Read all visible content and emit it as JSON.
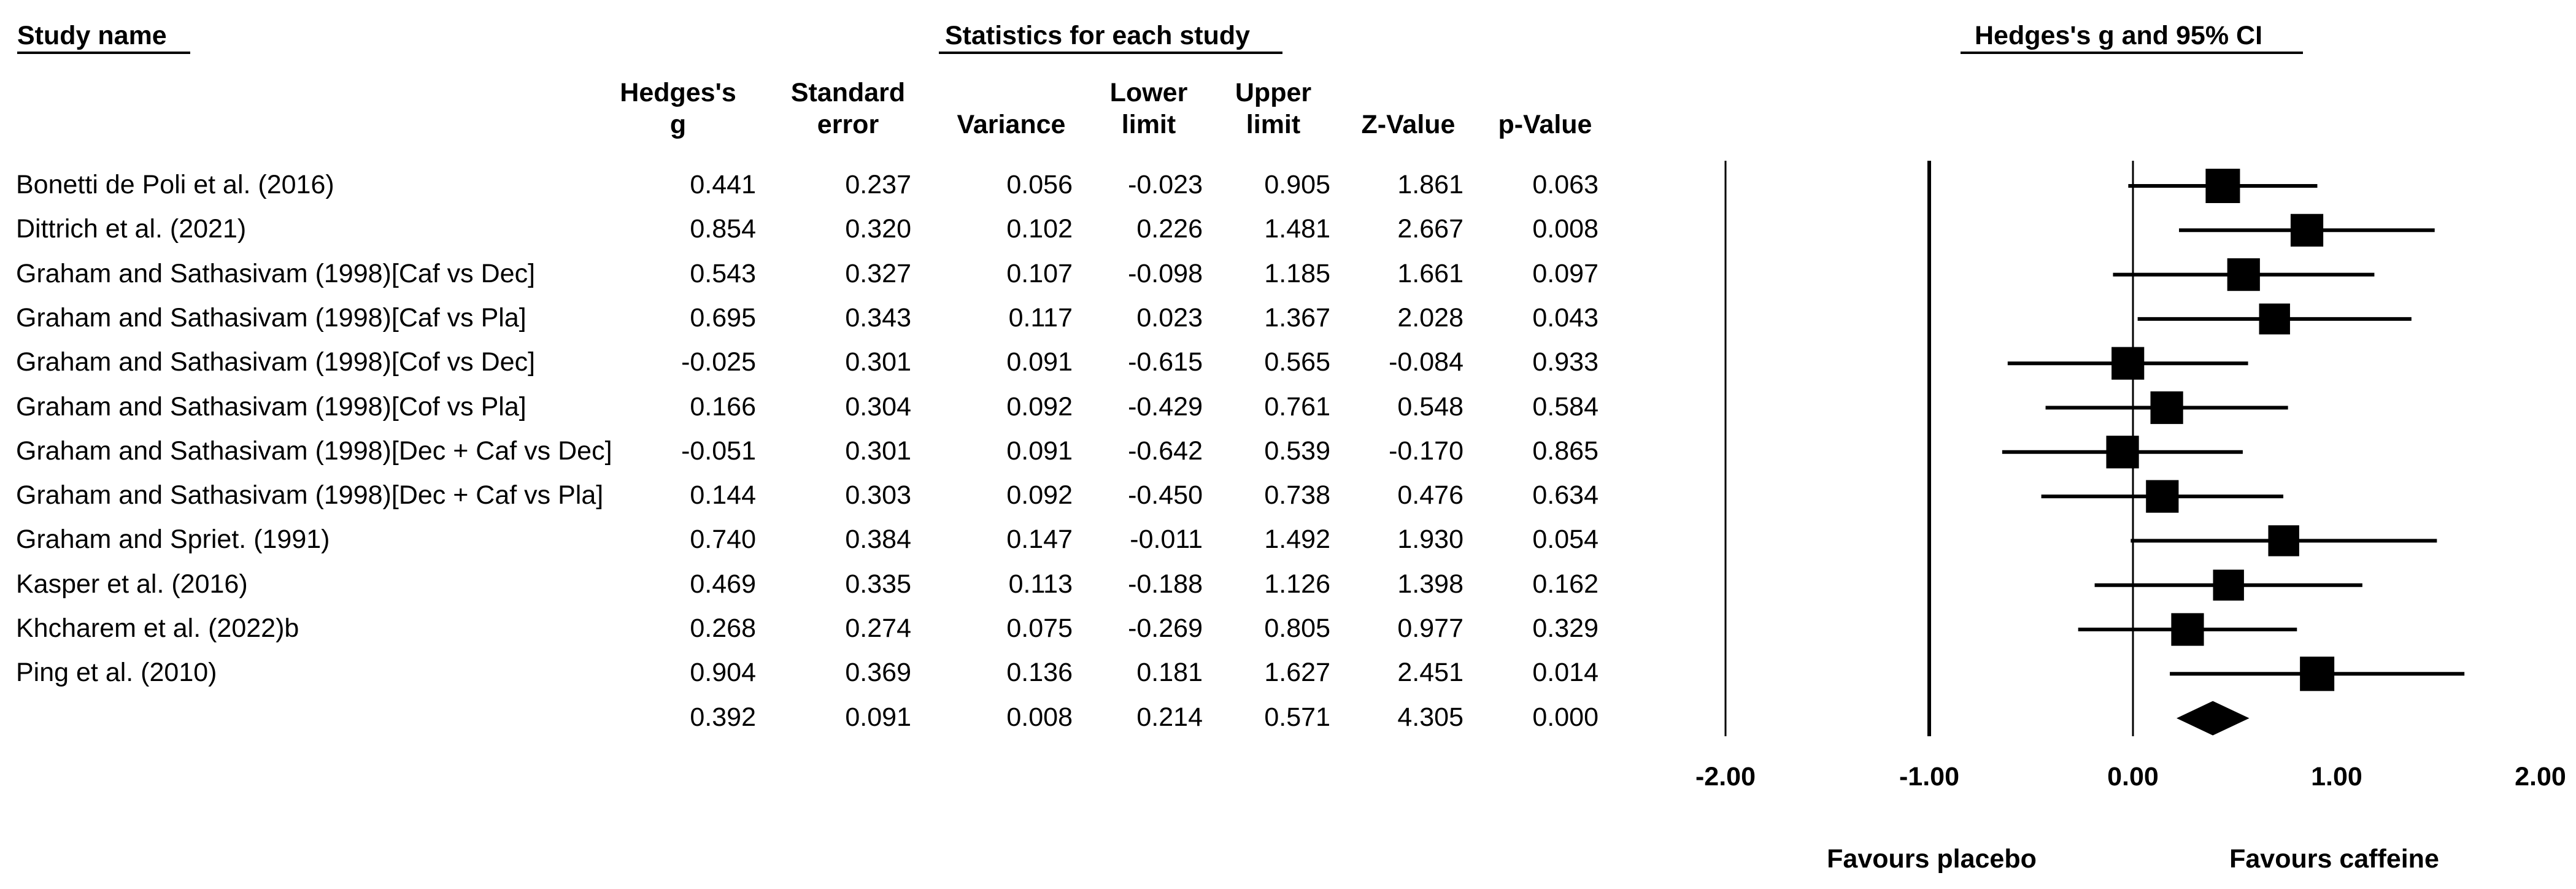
{
  "headers": {
    "study_name": "Study name",
    "stats": "Statistics for each study",
    "plot": "Hedges's g and 95% CI"
  },
  "columns": [
    {
      "line1": "Hedges's",
      "line2": "g"
    },
    {
      "line1": "Standard",
      "line2": "error"
    },
    {
      "line1": "",
      "line2": "Variance"
    },
    {
      "line1": "Lower",
      "line2": "limit"
    },
    {
      "line1": "Upper",
      "line2": "limit"
    },
    {
      "line1": "",
      "line2": "Z-Value"
    },
    {
      "line1": "",
      "line2": "p-Value"
    }
  ],
  "rows": [
    {
      "name": "Bonetti de Poli et al. (2016)",
      "g": "0.441",
      "se": "0.237",
      "var": "0.056",
      "lo": "-0.023",
      "hi": "0.905",
      "z": "1.861",
      "p": "0.063"
    },
    {
      "name": "Dittrich et al. (2021)",
      "g": "0.854",
      "se": "0.320",
      "var": "0.102",
      "lo": "0.226",
      "hi": "1.481",
      "z": "2.667",
      "p": "0.008"
    },
    {
      "name": "Graham and Sathasivam (1998)[Caf vs Dec]",
      "g": "0.543",
      "se": "0.327",
      "var": "0.107",
      "lo": "-0.098",
      "hi": "1.185",
      "z": "1.661",
      "p": "0.097"
    },
    {
      "name": "Graham and Sathasivam (1998)[Caf vs Pla]",
      "g": "0.695",
      "se": "0.343",
      "var": "0.117",
      "lo": "0.023",
      "hi": "1.367",
      "z": "2.028",
      "p": "0.043"
    },
    {
      "name": "Graham and Sathasivam (1998)[Cof vs Dec]",
      "g": "-0.025",
      "se": "0.301",
      "var": "0.091",
      "lo": "-0.615",
      "hi": "0.565",
      "z": "-0.084",
      "p": "0.933"
    },
    {
      "name": "Graham and Sathasivam (1998)[Cof vs Pla]",
      "g": "0.166",
      "se": "0.304",
      "var": "0.092",
      "lo": "-0.429",
      "hi": "0.761",
      "z": "0.548",
      "p": "0.584"
    },
    {
      "name": "Graham and Sathasivam (1998)[Dec + Caf vs Dec]",
      "g": "-0.051",
      "se": "0.301",
      "var": "0.091",
      "lo": "-0.642",
      "hi": "0.539",
      "z": "-0.170",
      "p": "0.865"
    },
    {
      "name": "Graham and Sathasivam (1998)[Dec + Caf vs Pla]",
      "g": "0.144",
      "se": "0.303",
      "var": "0.092",
      "lo": "-0.450",
      "hi": "0.738",
      "z": "0.476",
      "p": "0.634"
    },
    {
      "name": "Graham and Spriet. (1991)",
      "g": "0.740",
      "se": "0.384",
      "var": "0.147",
      "lo": "-0.011",
      "hi": "1.492",
      "z": "1.930",
      "p": "0.054"
    },
    {
      "name": "Kasper et al. (2016)",
      "g": "0.469",
      "se": "0.335",
      "var": "0.113",
      "lo": "-0.188",
      "hi": "1.126",
      "z": "1.398",
      "p": "0.162"
    },
    {
      "name": "Khcharem et al. (2022)b",
      "g": "0.268",
      "se": "0.274",
      "var": "0.075",
      "lo": "-0.269",
      "hi": "0.805",
      "z": "0.977",
      "p": "0.329"
    },
    {
      "name": "Ping et al. (2010)",
      "g": "0.904",
      "se": "0.369",
      "var": "0.136",
      "lo": "0.181",
      "hi": "1.627",
      "z": "2.451",
      "p": "0.014"
    }
  ],
  "summary": {
    "name": "",
    "g": "0.392",
    "se": "0.091",
    "var": "0.008",
    "lo": "0.214",
    "hi": "0.571",
    "z": "4.305",
    "p": "0.000"
  },
  "chart_data": {
    "type": "forest",
    "title": "Hedges's g and 95% CI",
    "xlim": [
      -2.0,
      2.0
    ],
    "ticks": [
      -2.0,
      -1.0,
      0.0,
      1.0,
      2.0
    ],
    "tick_labels": [
      "-2.00",
      "-1.00",
      "0.00",
      "1.00",
      "2.00"
    ],
    "reference_lines": [
      -2.0,
      -1.0,
      0.0
    ],
    "left_label": "Favours placebo",
    "right_label": "Favours caffeine",
    "studies": [
      {
        "g": 0.441,
        "lo": -0.023,
        "hi": 0.905,
        "weight": 1.0
      },
      {
        "g": 0.854,
        "lo": 0.226,
        "hi": 1.481,
        "weight": 0.95
      },
      {
        "g": 0.543,
        "lo": -0.098,
        "hi": 1.185,
        "weight": 0.95
      },
      {
        "g": 0.695,
        "lo": 0.023,
        "hi": 1.367,
        "weight": 0.9
      },
      {
        "g": -0.025,
        "lo": -0.615,
        "hi": 0.565,
        "weight": 0.95
      },
      {
        "g": 0.166,
        "lo": -0.429,
        "hi": 0.761,
        "weight": 0.95
      },
      {
        "g": -0.051,
        "lo": -0.642,
        "hi": 0.539,
        "weight": 0.95
      },
      {
        "g": 0.144,
        "lo": -0.45,
        "hi": 0.738,
        "weight": 0.95
      },
      {
        "g": 0.74,
        "lo": -0.011,
        "hi": 1.492,
        "weight": 0.9
      },
      {
        "g": 0.469,
        "lo": -0.188,
        "hi": 1.126,
        "weight": 0.9
      },
      {
        "g": 0.268,
        "lo": -0.269,
        "hi": 0.805,
        "weight": 0.95
      },
      {
        "g": 0.904,
        "lo": 0.181,
        "hi": 1.627,
        "weight": 1.0
      }
    ],
    "summary": {
      "g": 0.392,
      "lo": 0.214,
      "hi": 0.571
    }
  }
}
